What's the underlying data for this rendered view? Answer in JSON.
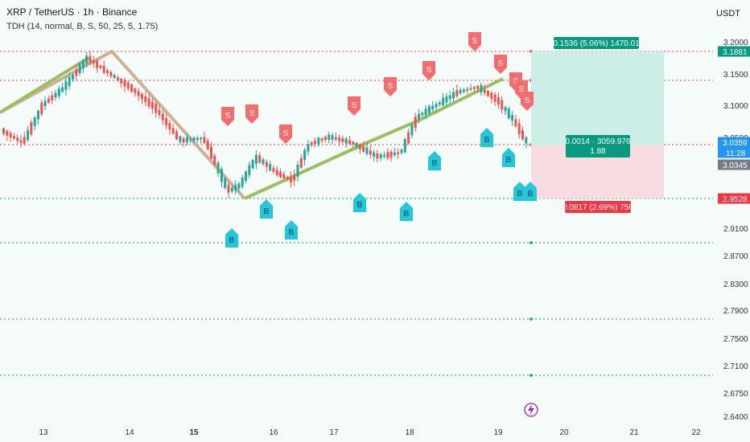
{
  "chart": {
    "title": "XRP / TetherUS · 1h · Binance",
    "indicator": "TDH (14, normal, B, S, 50, 25, 5, 1.75)",
    "currency": "USDT"
  },
  "chart_data": {
    "type": "candlestick",
    "y_ticks": [
      "3.2000",
      "3.1500",
      "3.1000",
      "3.0500",
      "2.9100",
      "2.8700",
      "2.8300",
      "2.7900",
      "2.7500",
      "2.7100",
      "2.6750",
      "2.6400"
    ],
    "x_ticks": [
      "13",
      "14",
      "15",
      "16",
      "17",
      "18",
      "19",
      "20",
      "21",
      "22"
    ],
    "levels": [
      {
        "value": "3.1881",
        "color": "#089981"
      },
      {
        "value": "3.0359",
        "color": "#2196f3",
        "extra": "11:28"
      },
      {
        "value": "3.0345",
        "color": "#787b86"
      },
      {
        "value": "2.9528",
        "color": "#f23645"
      }
    ],
    "position": {
      "target": "0.1536 (5.06%) 1470.01",
      "entry": "0.0014 · 3059.976",
      "entry_ratio": "1.88",
      "stop": "0.0817 (2.69%) 750"
    },
    "signal_labels": {
      "buy": "B",
      "sell": "S"
    }
  },
  "colors": {
    "up": "#26a69a",
    "down": "#ef5350",
    "trend_up": "#9bbf5e",
    "trend_down": "#c9a98a",
    "buy": "#26c6da",
    "sell": "#f56c6c"
  }
}
